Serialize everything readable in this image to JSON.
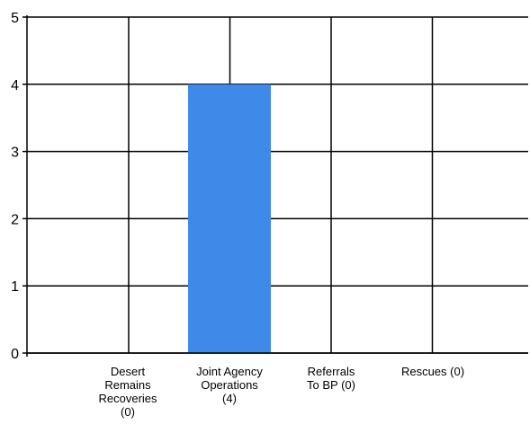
{
  "chart_data": {
    "type": "bar",
    "categories": [
      [
        "Desert",
        "Remains",
        "Recoveries",
        "(0)"
      ],
      [
        "Joint Agency",
        "Operations",
        "(4)"
      ],
      [
        "Referrals",
        "To BP (0)"
      ],
      [
        "Rescues (0)"
      ]
    ],
    "values": [
      0,
      4,
      0,
      0
    ],
    "ylim": [
      0,
      5
    ],
    "yticks": [
      0,
      1,
      2,
      3,
      4,
      5
    ],
    "grid": true,
    "bar_color": "#3f8ae8",
    "title": "",
    "xlabel": "",
    "ylabel": ""
  }
}
